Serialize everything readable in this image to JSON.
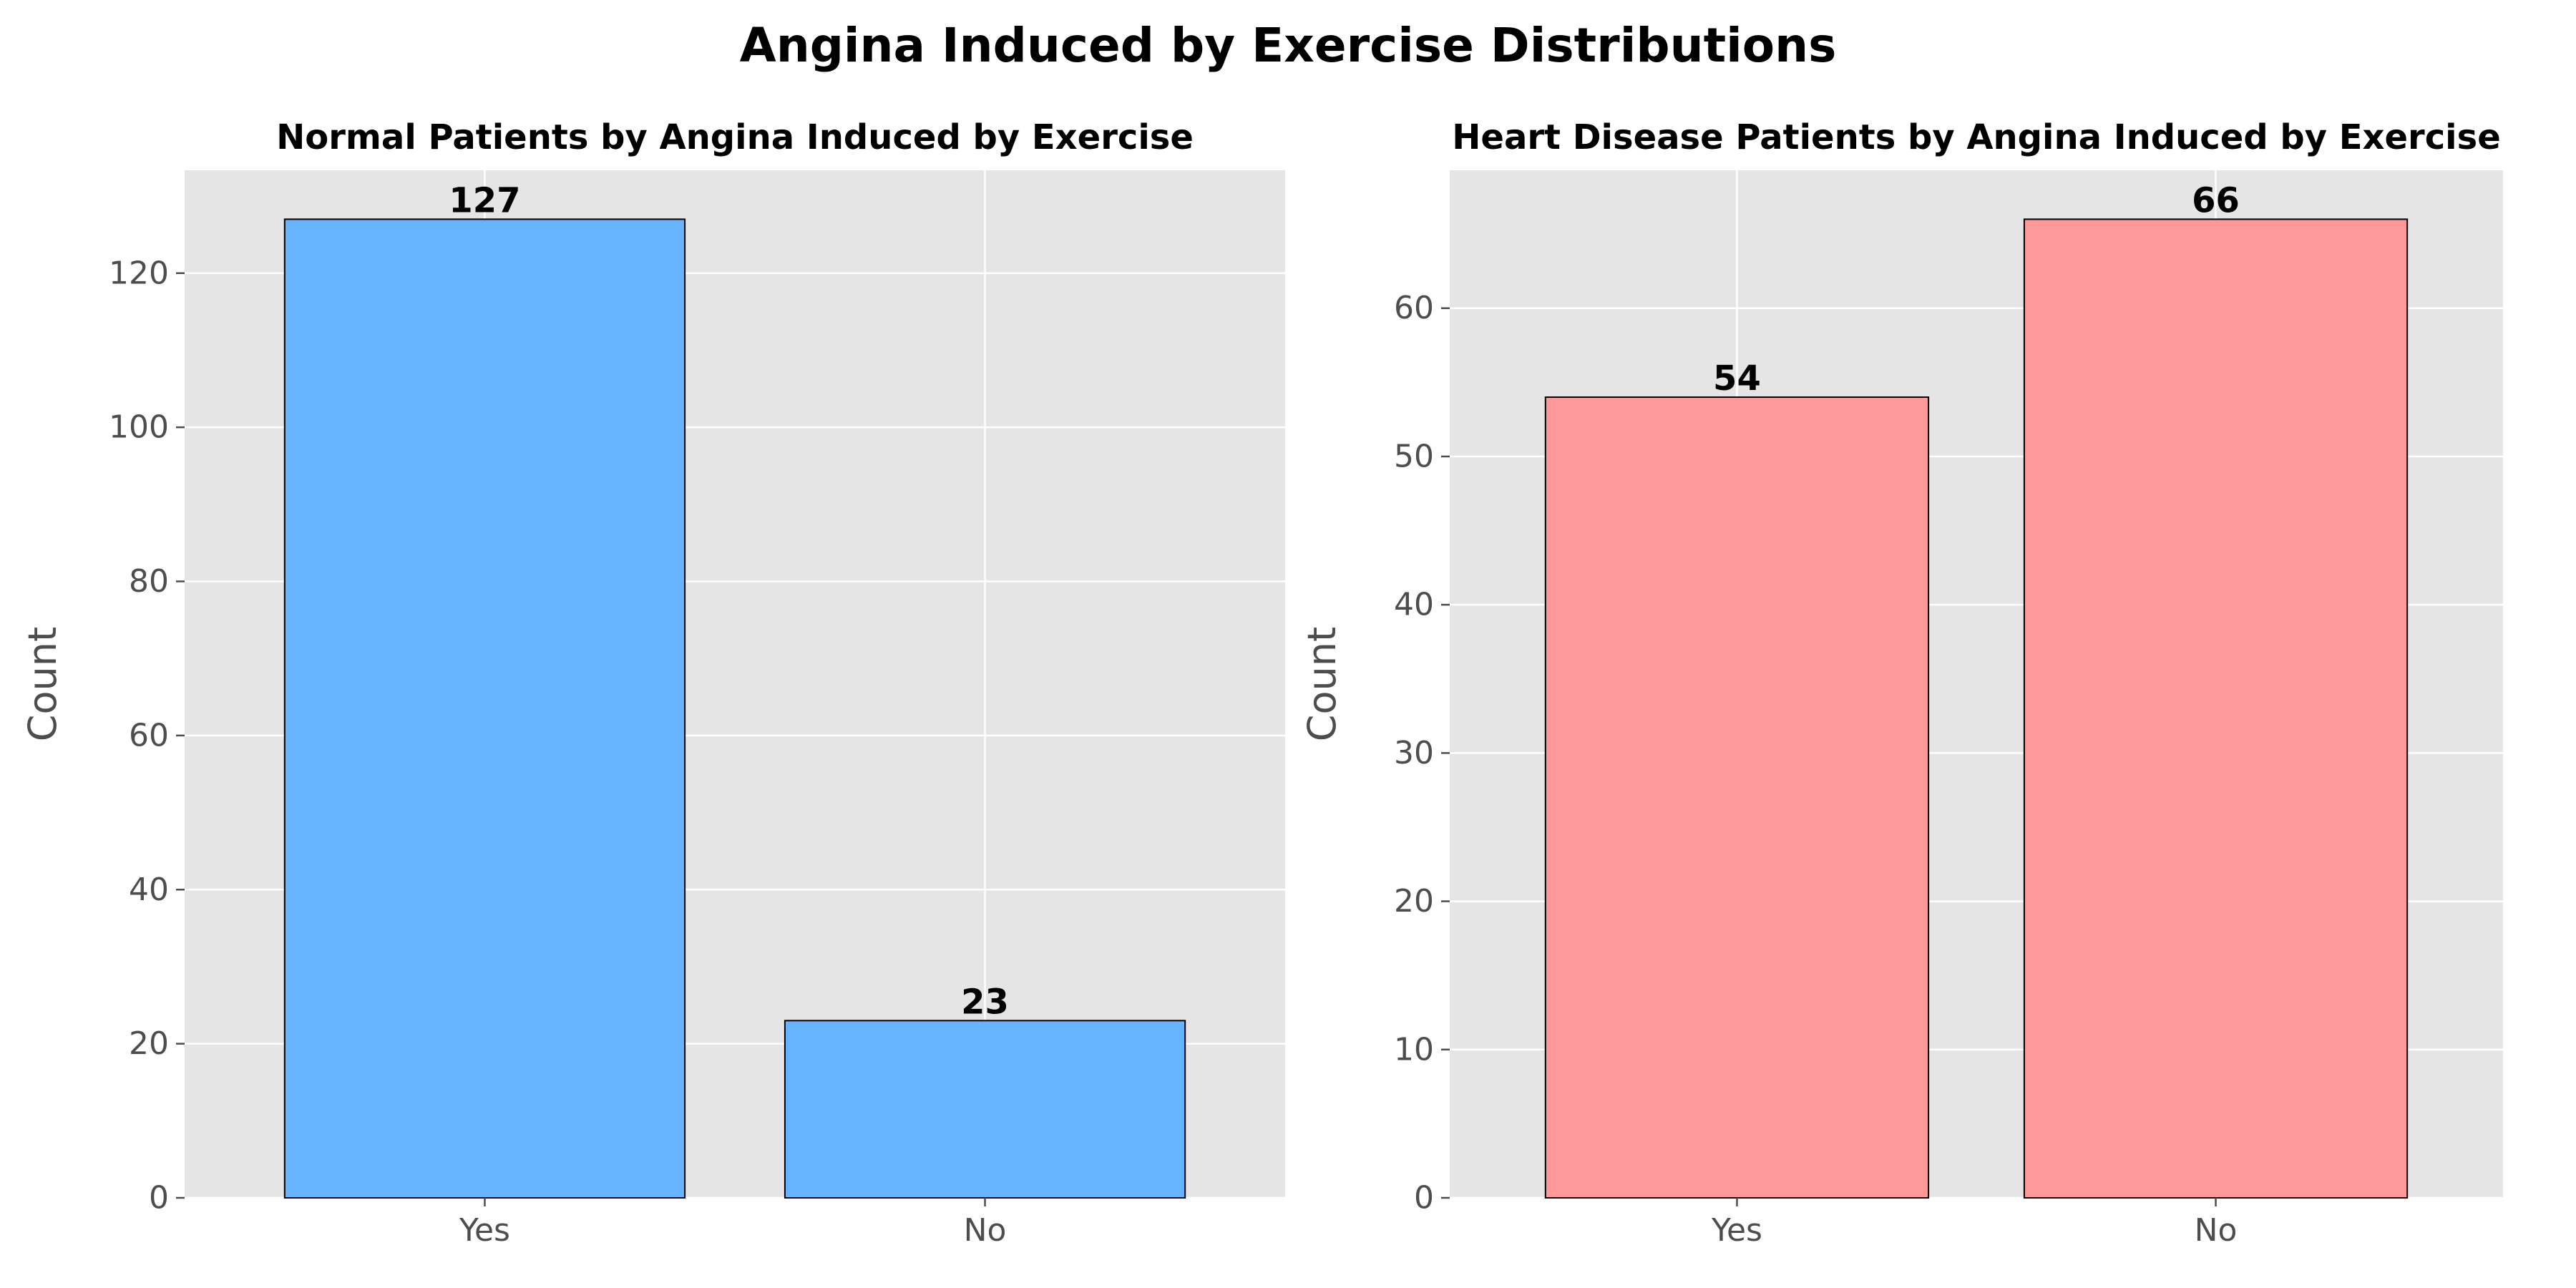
{
  "figure": {
    "title": "Angina Induced by Exercise Distributions"
  },
  "colors": {
    "panel_background": "#e5e5e5",
    "grid": "#ffffff",
    "tick_text": "#4d4d4d",
    "bar_edge": "#000000",
    "normal_bar": "#66b3ff",
    "disease_bar": "#ff9999"
  },
  "chart_data": [
    {
      "type": "bar",
      "title": "Normal Patients by Angina Induced by Exercise",
      "xlabel": "",
      "ylabel": "Count",
      "categories": [
        "Yes",
        "No"
      ],
      "values": [
        127,
        23
      ],
      "data_labels": [
        "127",
        "23"
      ],
      "ylim": [
        0,
        133.35
      ],
      "yticks": [
        0,
        20,
        40,
        60,
        80,
        100,
        120
      ],
      "grid": true,
      "color": "#66b3ff"
    },
    {
      "type": "bar",
      "title": "Heart Disease Patients by Angina Induced by Exercise",
      "xlabel": "",
      "ylabel": "Count",
      "categories": [
        "Yes",
        "No"
      ],
      "values": [
        54,
        66
      ],
      "data_labels": [
        "54",
        "66"
      ],
      "ylim": [
        0,
        69.3
      ],
      "yticks": [
        0,
        10,
        20,
        30,
        40,
        50,
        60
      ],
      "grid": true,
      "color": "#ff9999"
    }
  ]
}
